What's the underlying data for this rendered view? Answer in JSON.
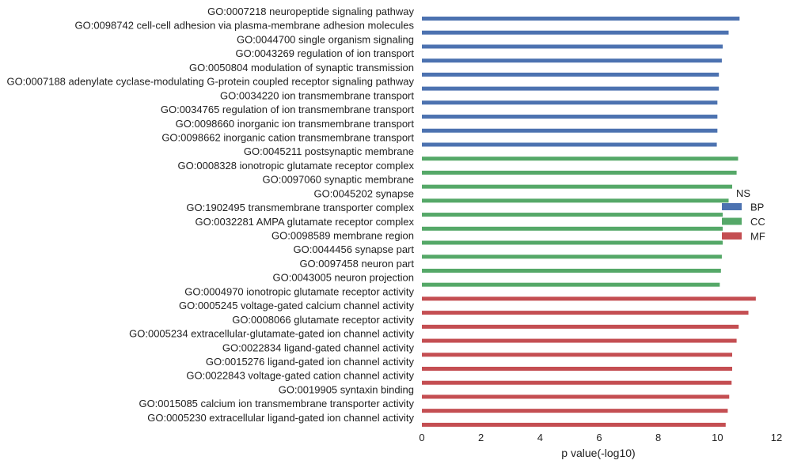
{
  "chart_data": {
    "type": "bar",
    "orientation": "horizontal",
    "title": "",
    "xlabel": "p value(-log10)",
    "ylabel": "",
    "xlim": [
      0,
      12
    ],
    "xticks": [
      "0",
      "2",
      "4",
      "6",
      "8",
      "10",
      "12"
    ],
    "grid": false,
    "legend": {
      "title": "NS",
      "placement": "right",
      "entries": [
        {
          "name": "BP",
          "color": "#4c72b0"
        },
        {
          "name": "CC",
          "color": "#55a868"
        },
        {
          "name": "MF",
          "color": "#c44e52"
        }
      ]
    },
    "categories": [
      "GO:0007218 neuropeptide signaling pathway",
      "GO:0098742 cell-cell adhesion via plasma-membrane adhesion molecules",
      "GO:0044700 single organism signaling",
      "GO:0043269 regulation of ion transport",
      "GO:0050804 modulation of synaptic transmission",
      "GO:0007188 adenylate cyclase-modulating G-protein coupled receptor signaling pathway",
      "GO:0034220 ion transmembrane transport",
      "GO:0034765 regulation of ion transmembrane transport",
      "GO:0098660 inorganic ion transmembrane transport",
      "GO:0098662 inorganic cation transmembrane transport",
      "GO:0045211 postsynaptic membrane",
      "GO:0008328 ionotropic glutamate receptor complex",
      "GO:0097060 synaptic membrane",
      "GO:0045202 synapse",
      "GO:1902495 transmembrane transporter complex",
      "GO:0032281 AMPA glutamate receptor complex",
      "GO:0098589 membrane region",
      "GO:0044456 synapse part",
      "GO:0097458 neuron part",
      "GO:0043005 neuron projection",
      "GO:0004970 ionotropic glutamate receptor activity",
      "GO:0005245 voltage-gated calcium channel activity",
      "GO:0008066 glutamate receptor activity",
      "GO:0005234 extracellular-glutamate-gated ion channel activity",
      "GO:0022834 ligand-gated channel activity",
      "GO:0015276 ligand-gated ion channel activity",
      "GO:0022843 voltage-gated cation channel activity",
      "GO:0019905 syntaxin binding",
      "GO:0015085 calcium ion transmembrane transporter activity",
      "GO:0005230 extracellular ligand-gated ion channel activity"
    ],
    "values": [
      10.75,
      10.38,
      10.18,
      10.15,
      10.05,
      10.05,
      10.0,
      10.0,
      10.0,
      9.98,
      10.7,
      10.65,
      10.5,
      10.38,
      10.18,
      10.18,
      10.18,
      10.15,
      10.12,
      10.08,
      11.3,
      11.05,
      10.72,
      10.65,
      10.5,
      10.5,
      10.48,
      10.4,
      10.35,
      10.28
    ],
    "groups": [
      "BP",
      "BP",
      "BP",
      "BP",
      "BP",
      "BP",
      "BP",
      "BP",
      "BP",
      "BP",
      "CC",
      "CC",
      "CC",
      "CC",
      "CC",
      "CC",
      "CC",
      "CC",
      "CC",
      "CC",
      "MF",
      "MF",
      "MF",
      "MF",
      "MF",
      "MF",
      "MF",
      "MF",
      "MF",
      "MF"
    ]
  }
}
